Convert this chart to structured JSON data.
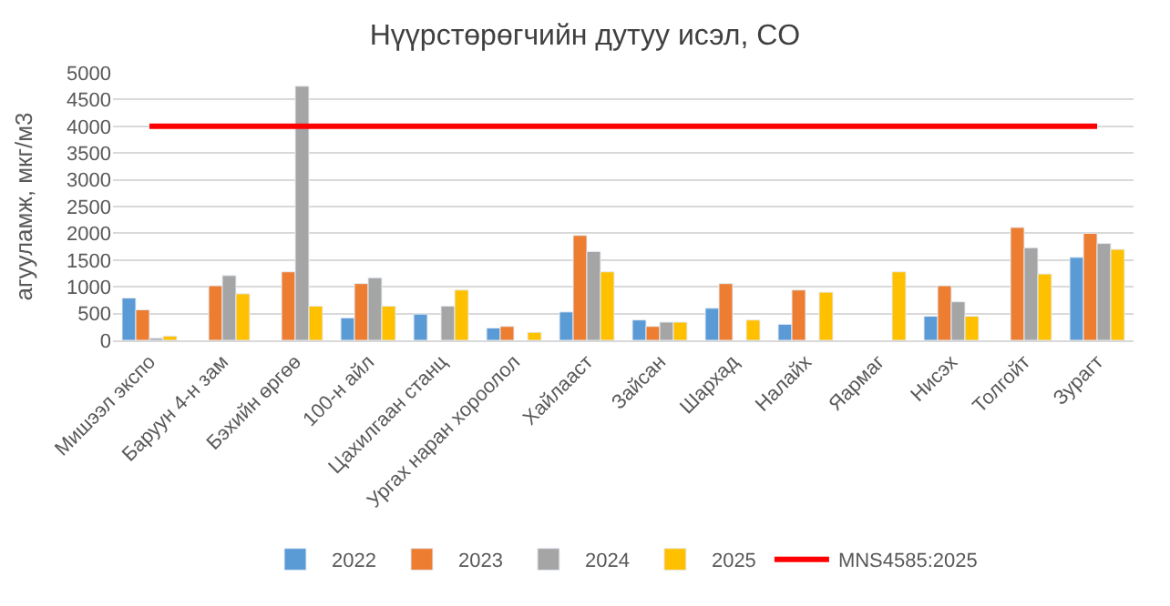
{
  "chart_data": {
    "type": "bar",
    "title": "Нүүрстөрөгчийн дутуу исэл, CO",
    "ylabel": "агууламж, мкг/м3",
    "categories": [
      "Мишээл экспо",
      "Баруун 4-н зам",
      "Бэхийн өргөө",
      "100-н айл",
      "Цахилгаан станц",
      "Ургах наран хороолол",
      "Хайлааст",
      "Зайсан",
      "Шархад",
      "Налайх",
      "Яармаг",
      "Нисэх",
      "Толгойт",
      "Зурагт"
    ],
    "series": [
      {
        "name": "2022",
        "color": "#5b9bd5",
        "values": [
          790,
          null,
          null,
          420,
          490,
          230,
          530,
          380,
          600,
          300,
          null,
          450,
          null,
          1550
        ]
      },
      {
        "name": "2023",
        "color": "#ed7d31",
        "values": [
          570,
          1020,
          1280,
          1060,
          null,
          260,
          1960,
          260,
          1060,
          940,
          null,
          1020,
          2110,
          2000
        ]
      },
      {
        "name": "2024",
        "color": "#a5a5a5",
        "values": [
          40,
          1210,
          4750,
          1170,
          640,
          null,
          1660,
          340,
          null,
          null,
          null,
          720,
          1730,
          1810
        ]
      },
      {
        "name": "2025",
        "color": "#ffc000",
        "values": [
          80,
          870,
          640,
          640,
          940,
          150,
          1280,
          340,
          380,
          900,
          1280,
          450,
          1240,
          1700
        ]
      },
      {
        "name": "MNS4585:2025",
        "type": "line",
        "color": "#ff0000",
        "values": [
          4000,
          4000,
          4000,
          4000,
          4000,
          4000,
          4000,
          4000,
          4000,
          4000,
          4000,
          4000,
          4000,
          4000
        ]
      }
    ],
    "ylim": [
      0,
      5000
    ],
    "yticks": [
      0,
      500,
      1000,
      1500,
      2000,
      2500,
      3000,
      3500,
      4000,
      4500,
      5000
    ],
    "grid": "y",
    "legend": "bottom",
    "marker": "none"
  }
}
